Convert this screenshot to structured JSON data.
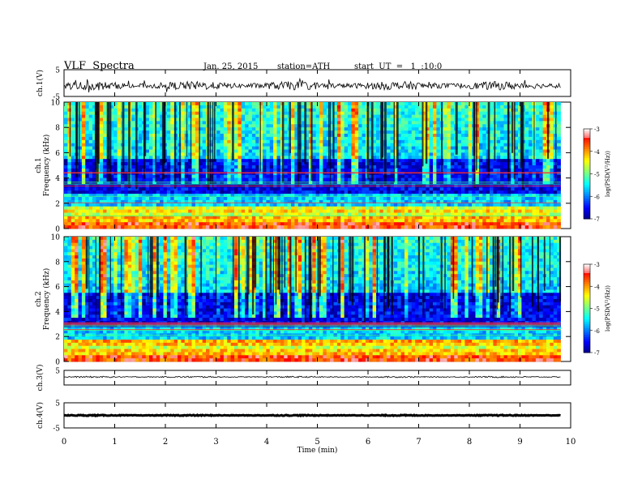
{
  "header": {
    "title": "VLF  Spectra",
    "date": "Jan. 25, 2015",
    "station": "station=ATH",
    "start_ut": "start  UT  =   1  :10:0"
  },
  "chart_data": [
    {
      "type": "line",
      "name": "ch1-waveform",
      "ylabel": "ch.1(V)",
      "ylim": [
        -5,
        5
      ],
      "y_ticks": [
        "5",
        "-5"
      ],
      "xlim": [
        0,
        10
      ],
      "x_end": 9.8,
      "baseline": -1.0,
      "noise": 0.25
    },
    {
      "type": "heatmap",
      "name": "ch1-spectrogram",
      "ylabel_1": "ch.1",
      "ylabel_2": "Frequency  (kHz)",
      "ylim": [
        0,
        10
      ],
      "y_ticks": [
        "0",
        "2",
        "4",
        "6",
        "8",
        "10"
      ],
      "colorbar": {
        "label": "log(PSD(V²/Hz))",
        "range": [
          -7,
          -3
        ],
        "ticks": [
          "-7",
          "-6",
          "-5",
          "-4",
          "-3"
        ]
      }
    },
    {
      "type": "heatmap",
      "name": "ch2-spectrogram",
      "ylabel_1": "ch.2",
      "ylabel_2": "Frequency  (kHz)",
      "ylim": [
        0,
        10
      ],
      "y_ticks": [
        "0",
        "2",
        "4",
        "6",
        "8",
        "10"
      ],
      "colorbar": {
        "label": "log(PSD(V²/Hz))",
        "range": [
          -7,
          -3
        ],
        "ticks": [
          "-7",
          "-6",
          "-5",
          "-4",
          "-3"
        ]
      }
    },
    {
      "type": "line",
      "name": "ch3-waveform",
      "ylabel": "ch.3(V)",
      "ylim": [
        -5,
        5
      ],
      "y_ticks": [
        "5"
      ],
      "xlim": [
        0,
        10
      ],
      "x_end": 9.8,
      "baseline": 0.5,
      "noise": 0.08
    },
    {
      "type": "line",
      "name": "ch4-waveform",
      "ylabel": "ch.4(V)",
      "ylim": [
        -5,
        5
      ],
      "y_ticks": [
        "5",
        "-5"
      ],
      "xlim": [
        0,
        10
      ],
      "x_end": 9.8,
      "baseline": 0.0,
      "noise": 0.03
    }
  ],
  "x_axis": {
    "label": "Time  (min)",
    "range": [
      0,
      10
    ],
    "ticks": [
      "0",
      "1",
      "2",
      "3",
      "4",
      "5",
      "6",
      "7",
      "8",
      "9",
      "10"
    ]
  }
}
